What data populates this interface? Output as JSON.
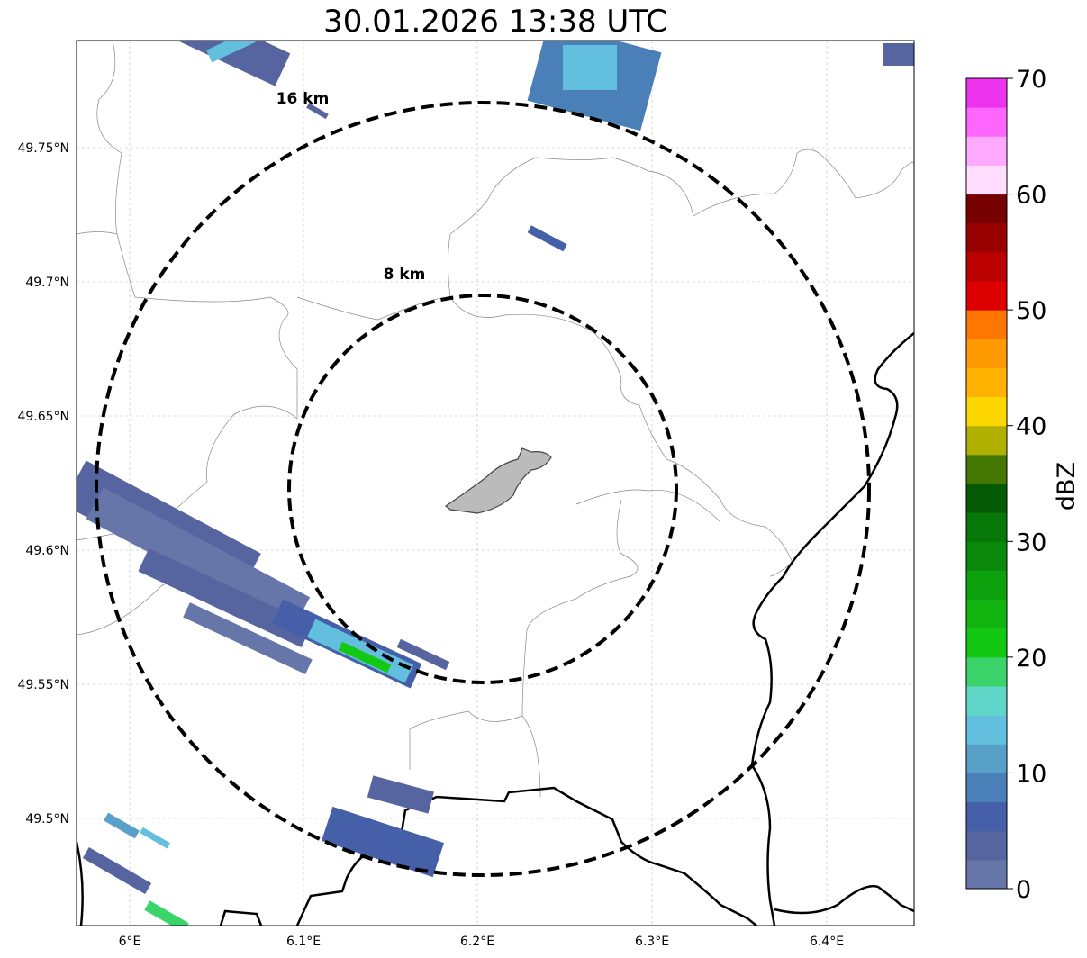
{
  "title": "30.01.2026 13:38 UTC",
  "map": {
    "lon_ticks": [
      "6°E",
      "6.1°E",
      "6.2°E",
      "6.3°E",
      "6.4°E"
    ],
    "lat_ticks": [
      "49.75°N",
      "49.7°N",
      "49.65°N",
      "49.6°N",
      "49.55°N",
      "49.5°N"
    ],
    "range_rings": [
      {
        "label": "8 km",
        "radius_km": 8
      },
      {
        "label": "16 km",
        "radius_km": 16
      }
    ],
    "center_lon": 6.2,
    "center_lat": 49.623
  },
  "colorbar": {
    "label": "dBZ",
    "ticks": [
      "0",
      "10",
      "20",
      "30",
      "40",
      "50",
      "60",
      "70"
    ],
    "step": 2.5,
    "colors": [
      "#6776a8",
      "#56659f",
      "#4560a8",
      "#4a7fb8",
      "#58a0c8",
      "#62bfdd",
      "#5fd6c8",
      "#3ad46a",
      "#12c812",
      "#10b510",
      "#0da00d",
      "#0a880a",
      "#077707",
      "#055a05",
      "#447700",
      "#b0b000",
      "#ffd700",
      "#ffb300",
      "#ff9900",
      "#ff7700",
      "#dd0000",
      "#bb0000",
      "#990000",
      "#770000",
      "#ffddff",
      "#ffaaff",
      "#ff66ff",
      "#ee33ee"
    ]
  }
}
